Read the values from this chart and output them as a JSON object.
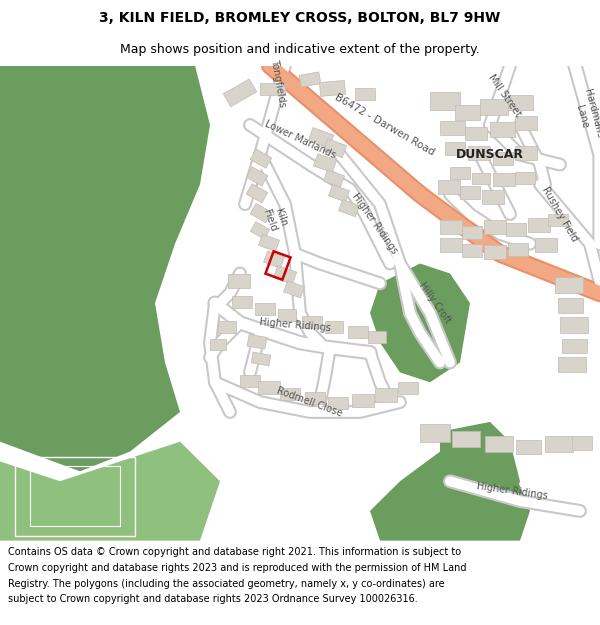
{
  "title_line1": "3, KILN FIELD, BROMLEY CROSS, BOLTON, BL7 9HW",
  "title_line2": "Map shows position and indicative extent of the property.",
  "copyright_text": "Contains OS data © Crown copyright and database right 2021. This information is subject to Crown copyright and database rights 2023 and is reproduced with the permission of HM Land Registry. The polygons (including the associated geometry, namely x, y co-ordinates) are subject to Crown copyright and database rights 2023 Ordnance Survey 100026316.",
  "fig_width": 6.0,
  "fig_height": 6.25,
  "map_bg": "#ffffff",
  "title_fontsize": 10.0,
  "subtitle_fontsize": 9.0,
  "copyright_fontsize": 7.0,
  "green_color": "#6b9e5e",
  "green_color2": "#8fc07e",
  "road_fill": "#ffffff",
  "road_edge": "#c8c8c8",
  "highlight_fill": "#f2a882",
  "highlight_edge": "#e8906a",
  "building_color": "#d8d4cc",
  "building_edge": "#c0bcb4",
  "plot_edgecolor": "#cc0000",
  "plot_linewidth": 1.8,
  "text_color": "#555555",
  "dunscar_color": "#222222"
}
